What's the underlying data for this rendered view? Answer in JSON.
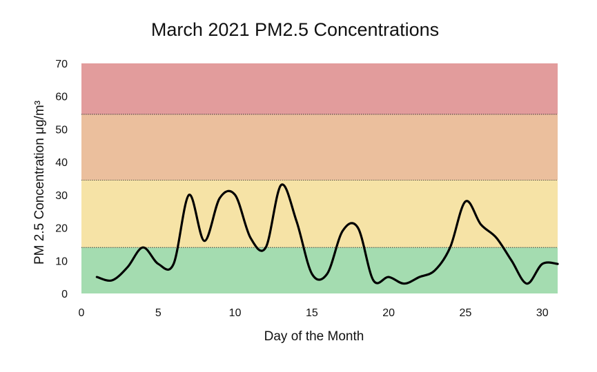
{
  "chart_data": {
    "type": "line",
    "title": "March 2021 PM2.5 Concentrations",
    "xlabel": "Day of the Month",
    "ylabel": "PM 2.5 Concentration  μg/m³",
    "xlim": [
      0,
      31
    ],
    "ylim": [
      0,
      70
    ],
    "xticks": [
      0,
      5,
      10,
      15,
      20,
      25,
      30
    ],
    "yticks": [
      0,
      10,
      20,
      30,
      40,
      50,
      60,
      70
    ],
    "grid": false,
    "bands": [
      {
        "from": 0,
        "to": 14,
        "color": "#a4dcb0"
      },
      {
        "from": 14,
        "to": 34.5,
        "color": "#f6e3a6"
      },
      {
        "from": 34.5,
        "to": 54.5,
        "color": "#ebbf9d"
      },
      {
        "from": 54.5,
        "to": 70,
        "color": "#e29c9c"
      }
    ],
    "series": [
      {
        "color": "#000000",
        "x": [
          1,
          2,
          3,
          4,
          5,
          6,
          7,
          8,
          9,
          10,
          11,
          12,
          13,
          14,
          15,
          16,
          17,
          18,
          19,
          20,
          21,
          22,
          23,
          24,
          25,
          26,
          27,
          28,
          29,
          30,
          31
        ],
        "y": [
          5,
          4,
          8,
          14,
          9,
          9,
          30,
          16,
          29,
          30,
          17,
          14,
          33,
          22,
          6,
          6,
          19,
          20,
          4,
          5,
          3,
          5,
          7,
          14,
          28,
          21,
          17,
          10,
          3,
          9,
          9
        ]
      }
    ]
  }
}
